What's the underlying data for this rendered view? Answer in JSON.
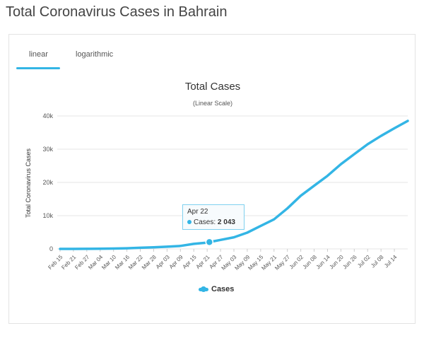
{
  "page": {
    "title": "Total Coronavirus Cases in Bahrain"
  },
  "tabs": [
    {
      "label": "linear",
      "active": true
    },
    {
      "label": "logarithmic",
      "active": false
    }
  ],
  "tooltip": {
    "date": "Apr 22",
    "series": "Cases",
    "value": "2 043"
  },
  "colors": {
    "series": "#33b5e5",
    "grid": "#e6e6e6",
    "tab_underline": "#33b5e5"
  },
  "chart_data": {
    "type": "line",
    "title": "Total Cases",
    "subtitle": "(Linear Scale)",
    "ylabel": "Total Coronavirus Cases",
    "xlabel": "",
    "ylim": [
      0,
      40000
    ],
    "y_ticks": [
      0,
      10000,
      20000,
      30000,
      40000
    ],
    "y_tick_labels": [
      "0",
      "10k",
      "20k",
      "30k",
      "40k"
    ],
    "x_tick_labels": [
      "Feb 15",
      "Feb 21",
      "Feb 27",
      "Mar 04",
      "Mar 10",
      "Mar 16",
      "Mar 22",
      "Mar 28",
      "Apr 03",
      "Apr 09",
      "Apr 15",
      "Apr 21",
      "Apr 27",
      "May 03",
      "May 09",
      "May 15",
      "May 21",
      "May 27",
      "Jun 02",
      "Jun 08",
      "Jun 14",
      "Jun 20",
      "Jun 26",
      "Jul 02",
      "Jul 08",
      "Jul 14"
    ],
    "grid": true,
    "legend_position": "bottom-center",
    "series": [
      {
        "name": "Cases",
        "x": [
          "Feb 15",
          "Feb 21",
          "Feb 27",
          "Mar 04",
          "Mar 10",
          "Mar 16",
          "Mar 22",
          "Mar 28",
          "Apr 03",
          "Apr 09",
          "Apr 15",
          "Apr 21",
          "Apr 22",
          "Apr 27",
          "May 03",
          "May 09",
          "May 15",
          "May 21",
          "May 27",
          "Jun 02",
          "Jun 08",
          "Jun 14",
          "Jun 20",
          "Jun 26",
          "Jul 02",
          "Jul 08",
          "Jul 14",
          "Jul 20"
        ],
        "values": [
          0,
          0,
          30,
          50,
          100,
          200,
          330,
          490,
          670,
          900,
          1500,
          1900,
          2043,
          2700,
          3500,
          4900,
          6900,
          8900,
          12200,
          16000,
          19000,
          22000,
          25500,
          28500,
          31500,
          34000,
          36300,
          38500
        ]
      }
    ]
  }
}
